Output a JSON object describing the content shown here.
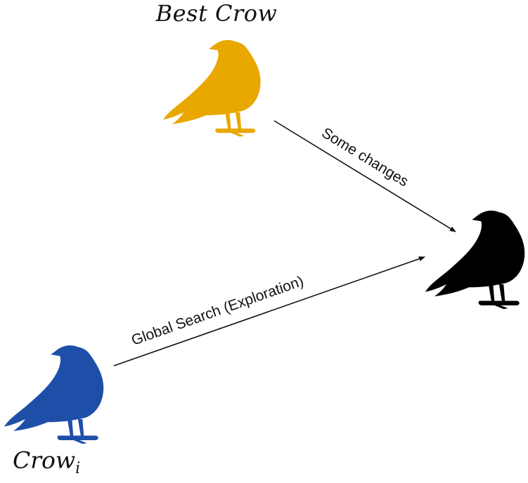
{
  "nodes": {
    "best_crow": {
      "label": "Best Crow",
      "color": "#E8A800"
    },
    "crow_i": {
      "label": "Crow",
      "subscript": "i",
      "color": "#1E4FA8"
    },
    "target_crow": {
      "color": "#000000"
    }
  },
  "edges": {
    "best_to_target": {
      "label": "Some changes"
    },
    "crow_i_to_target": {
      "label": "Global Search (Exploration)"
    }
  }
}
